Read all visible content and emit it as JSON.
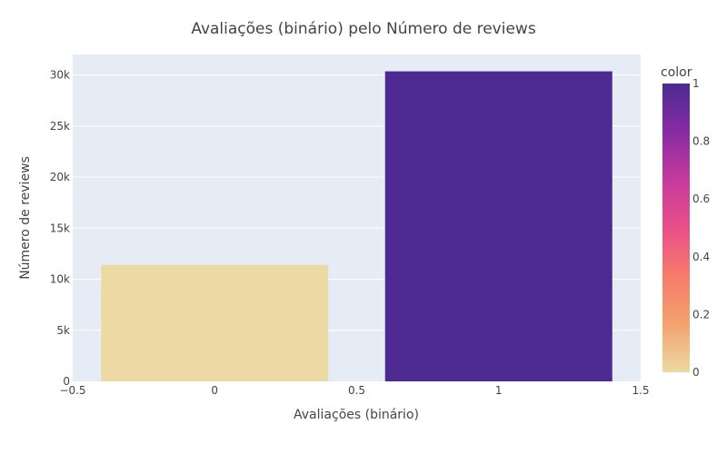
{
  "chart_data": {
    "type": "bar",
    "title": "Avaliações (binário) pelo Número de reviews",
    "xlabel": "Avaliações (binário)",
    "ylabel": "Número de reviews",
    "x": [
      0,
      1
    ],
    "values": [
      11400,
      30350
    ],
    "color_values": [
      0,
      1
    ],
    "xlim": [
      -0.5,
      1.5
    ],
    "ylim": [
      0,
      32000
    ],
    "x_ticks": [
      -0.5,
      0,
      0.5,
      1,
      1.5
    ],
    "x_tick_labels": [
      "−0.5",
      "0",
      "0.5",
      "1",
      "1.5"
    ],
    "y_ticks": [
      0,
      5000,
      10000,
      15000,
      20000,
      25000,
      30000
    ],
    "y_tick_labels": [
      "0",
      "5k",
      "10k",
      "15k",
      "20k",
      "25k",
      "30k"
    ],
    "grid": true,
    "plot_bg": "#e5ecf6",
    "colorbar": {
      "title": "color",
      "range": [
        0,
        1
      ],
      "ticks": [
        0,
        0.2,
        0.4,
        0.6,
        0.8,
        1
      ],
      "tick_labels": [
        "0",
        "0.2",
        "0.4",
        "0.6",
        "0.8",
        "1"
      ],
      "colorscale": [
        "#edd9a3",
        "#f2a36e",
        "#f67b6b",
        "#ea4f88",
        "#c53a9d",
        "#872ca2",
        "#4c2a92"
      ]
    }
  }
}
